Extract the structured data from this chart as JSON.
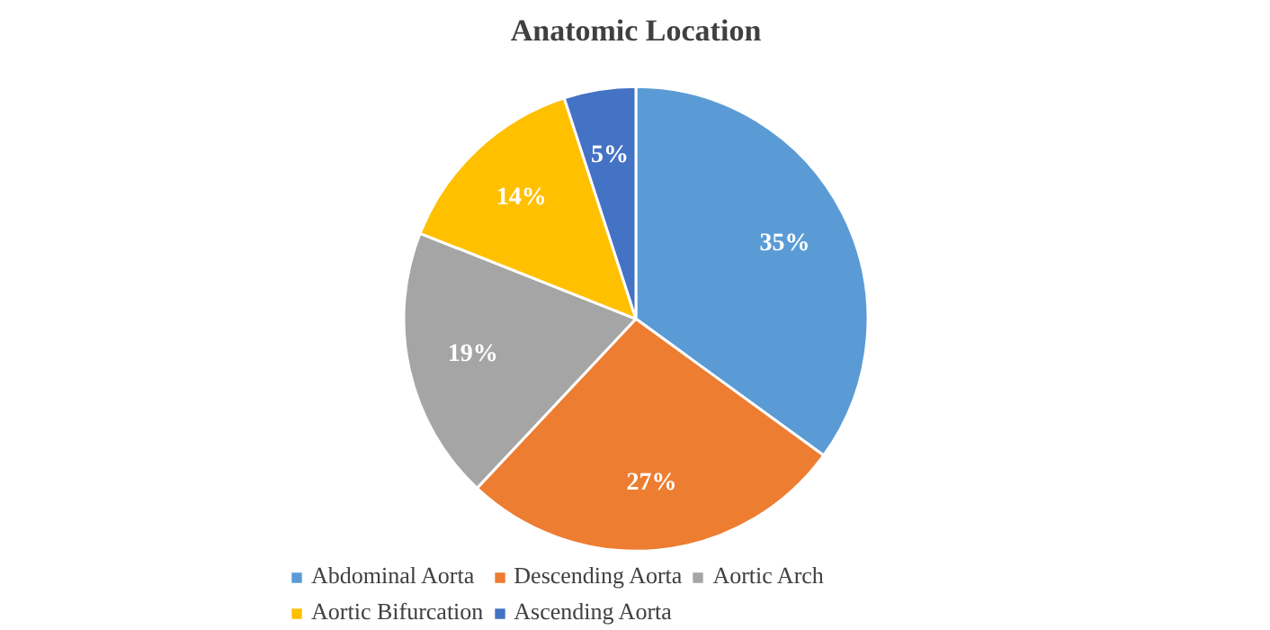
{
  "chart_data": {
    "type": "pie",
    "title": "Anatomic Location",
    "categories": [
      "Abdominal Aorta",
      "Descending Aorta",
      "Aortic Arch",
      "Aortic Bifurcation",
      "Ascending Aorta"
    ],
    "values": [
      35,
      27,
      19,
      14,
      5
    ],
    "colors": [
      "#5b9bd5",
      "#ed7d31",
      "#a5a5a5",
      "#ffc000",
      "#4472c4"
    ],
    "value_labels": [
      "35%",
      "27%",
      "19%",
      "14%",
      "5%"
    ],
    "legend": "bottom"
  }
}
